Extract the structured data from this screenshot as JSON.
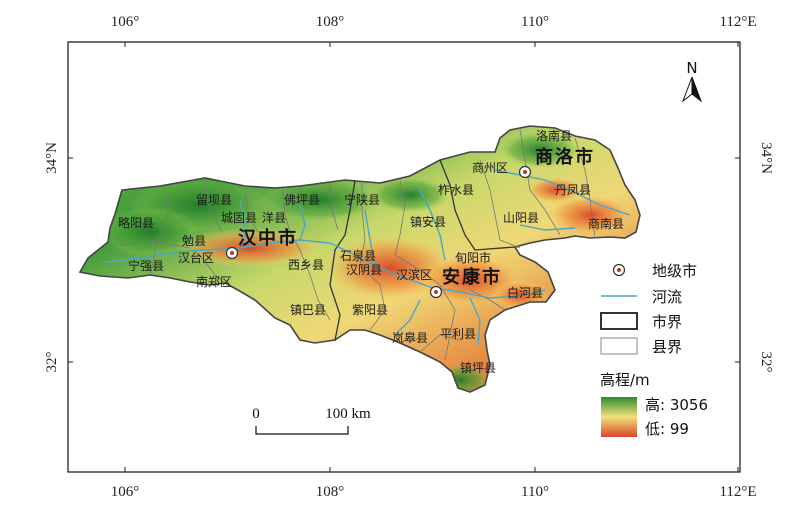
{
  "axes": {
    "top_ticks": [
      "106°",
      "108°",
      "110°",
      "112°E"
    ],
    "bottom_ticks": [
      "106°",
      "108°",
      "110°",
      "112°E"
    ],
    "left_ticks": [
      "34°N",
      "32°"
    ],
    "right_ticks": [
      "34°N",
      "32°"
    ]
  },
  "north_arrow": {
    "label": "N"
  },
  "cities": [
    {
      "name": "汉中市"
    },
    {
      "name": "安康市"
    },
    {
      "name": "商洛市"
    }
  ],
  "counties": {
    "hanzhong": [
      "略阳县",
      "留坝县",
      "城固县",
      "洋县",
      "佛坪县",
      "勉县",
      "汉台区",
      "宁强县",
      "南郑区",
      "西乡县",
      "镇巴县"
    ],
    "ankang": [
      "宁陕县",
      "石泉县",
      "汉阴县",
      "汉滨区",
      "紫阳县",
      "旬阳市",
      "白河县",
      "岚皋县",
      "平利县",
      "镇坪县"
    ],
    "shangluo": [
      "洛南县",
      "商州区",
      "柞水县",
      "丹凤县",
      "镇安县",
      "山阳县",
      "商南县"
    ]
  },
  "legend": {
    "items": [
      {
        "label": "地级市",
        "icon": "city-point-icon"
      },
      {
        "label": "河流",
        "icon": "river-line-icon"
      },
      {
        "label": "市界",
        "icon": "city-boundary-icon"
      },
      {
        "label": "县界",
        "icon": "county-boundary-icon"
      }
    ],
    "elevation_title": "高程/m",
    "elevation_high": "高: 3056",
    "elevation_low": "低: 99",
    "colors": {
      "high": "#2e8b2e",
      "mid": "#f2e07a",
      "low": "#d9472b"
    }
  },
  "scale_bar": {
    "start_label": "0",
    "end_label": "100 km"
  },
  "colors": {
    "river": "#4aa6c8",
    "frame": "#222222"
  }
}
